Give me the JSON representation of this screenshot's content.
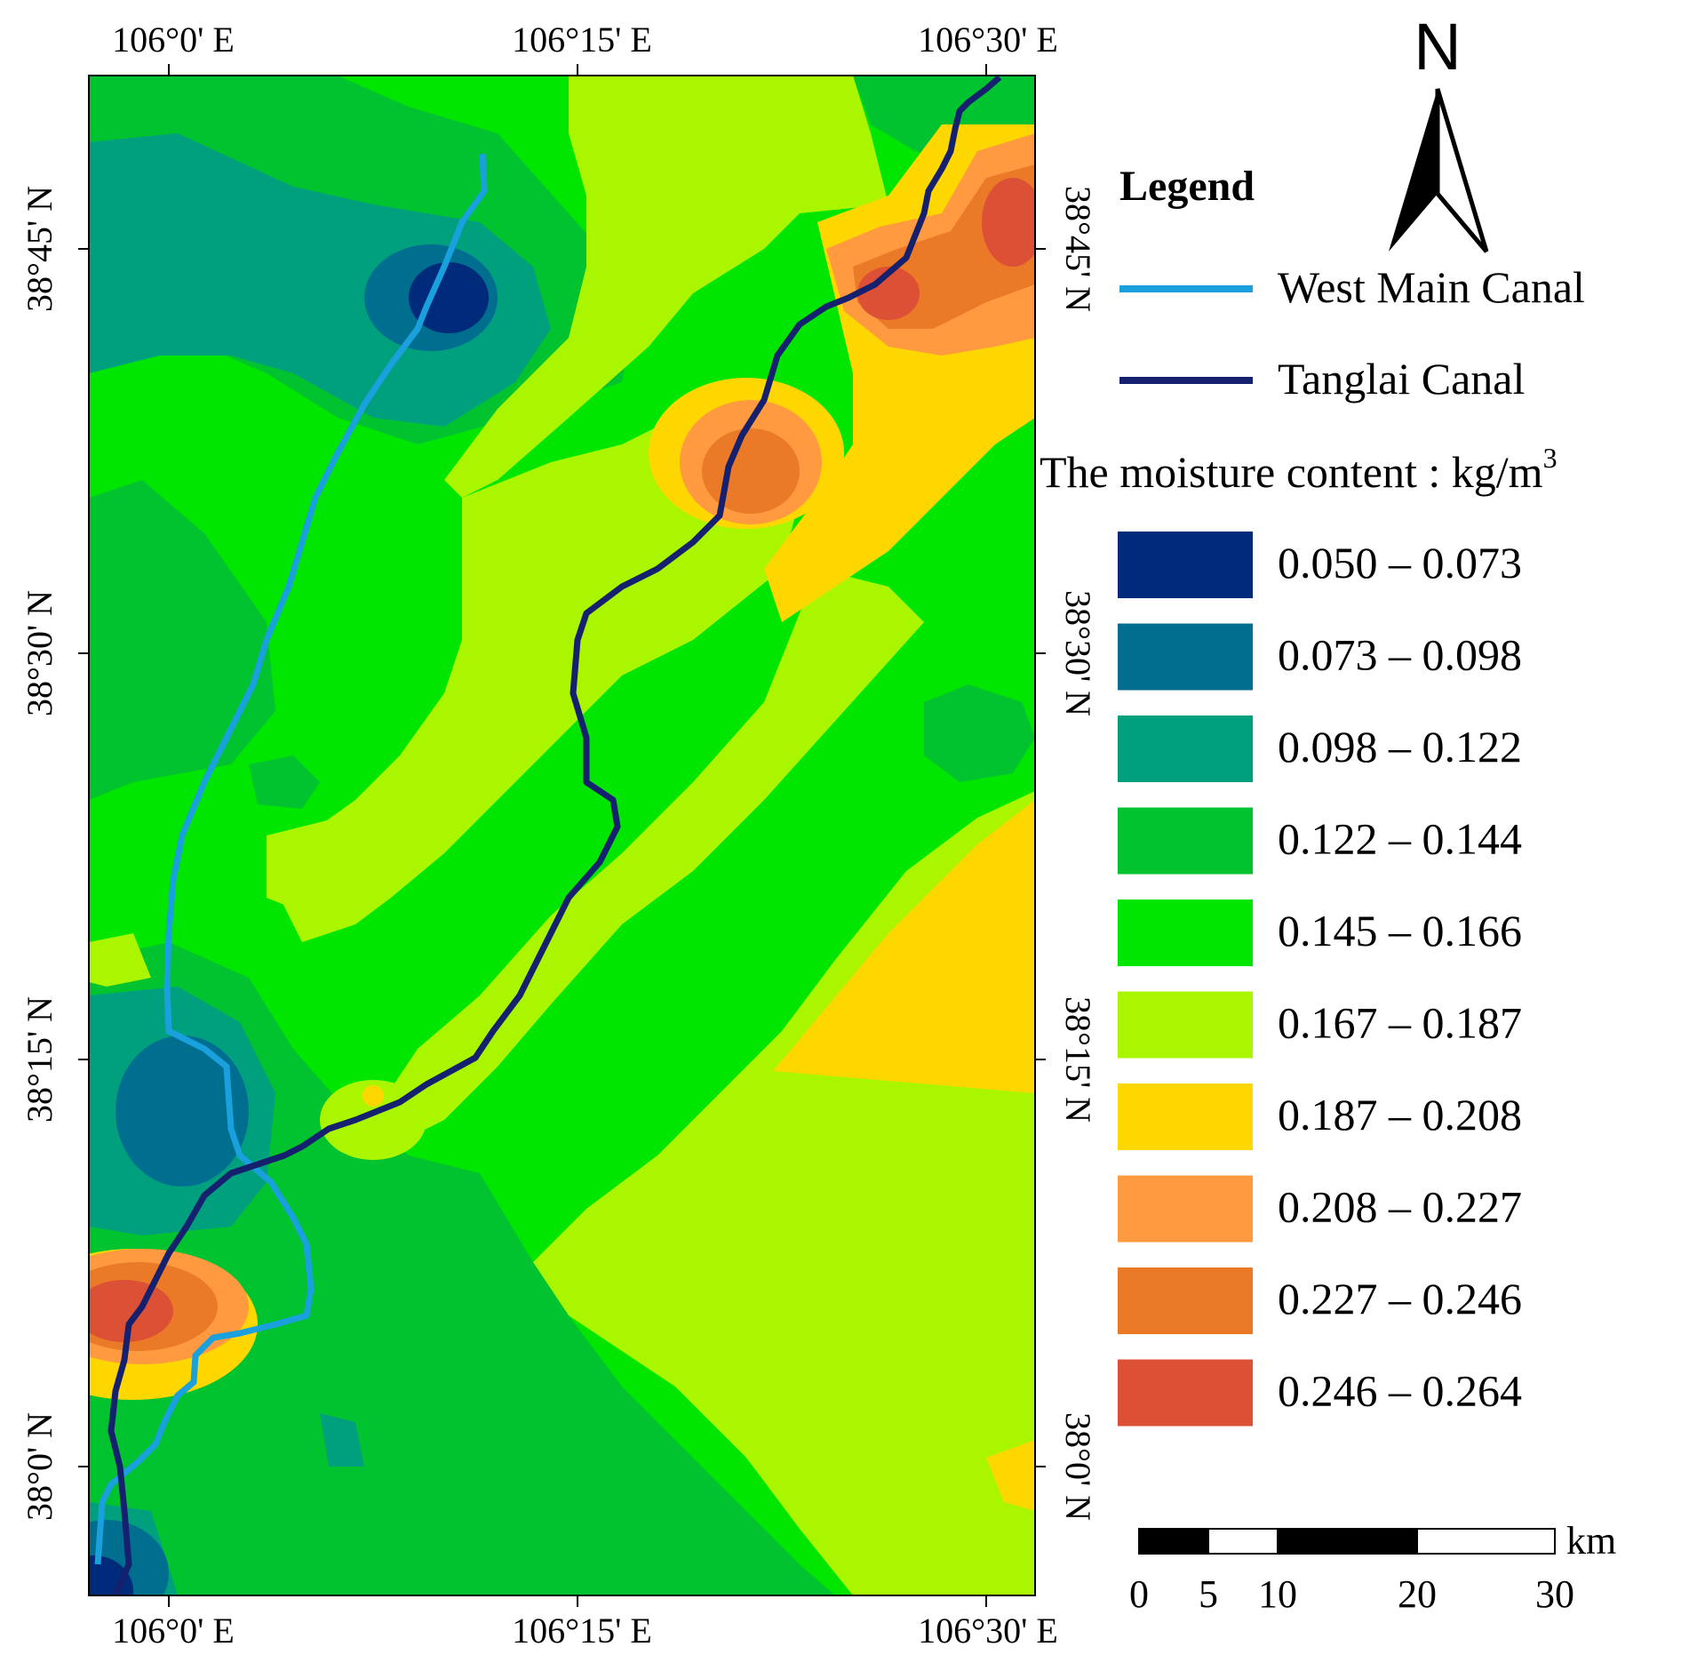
{
  "map": {
    "top_axis_labels": [
      "106°0' E",
      "106°15' E",
      "106°30' E"
    ],
    "bottom_axis_labels": [
      "106°0' E",
      "106°15' E",
      "106°30' E"
    ],
    "left_axis_labels": [
      "38°45' N",
      "38°30' N",
      "38°15' N",
      "38°0' N"
    ],
    "right_axis_labels": [
      "38°45' N",
      "38°30' N",
      "38°15' N",
      "38°0' N"
    ]
  },
  "north_arrow": {
    "label": "N"
  },
  "legend": {
    "title": "Legend",
    "lines": [
      {
        "label": "West Main Canal",
        "color": "#1aa0dc"
      },
      {
        "label": "Tanglai Canal",
        "color": "#15206e"
      }
    ],
    "moisture_title_text": "The moisture content : kg/m",
    "moisture_title_superscript": "3",
    "classes": [
      {
        "label": "0.050 – 0.073",
        "color": "#002a7a"
      },
      {
        "label": "0.073 – 0.098",
        "color": "#006e8f"
      },
      {
        "label": "0.098 – 0.122",
        "color": "#00a07f"
      },
      {
        "label": "0.122 – 0.144",
        "color": "#00c32f"
      },
      {
        "label": "0.145 – 0.166",
        "color": "#00e600"
      },
      {
        "label": "0.167 – 0.187",
        "color": "#aaf500"
      },
      {
        "label": "0.187 – 0.208",
        "color": "#ffd700"
      },
      {
        "label": "0.208 – 0.227",
        "color": "#ff9a40"
      },
      {
        "label": "0.227 – 0.246",
        "color": "#ea7a27"
      },
      {
        "label": "0.246 – 0.264",
        "color": "#dc5036"
      }
    ]
  },
  "scale_bar": {
    "ticks": [
      "0",
      "5",
      "10",
      "20",
      "30"
    ],
    "unit": "km"
  }
}
